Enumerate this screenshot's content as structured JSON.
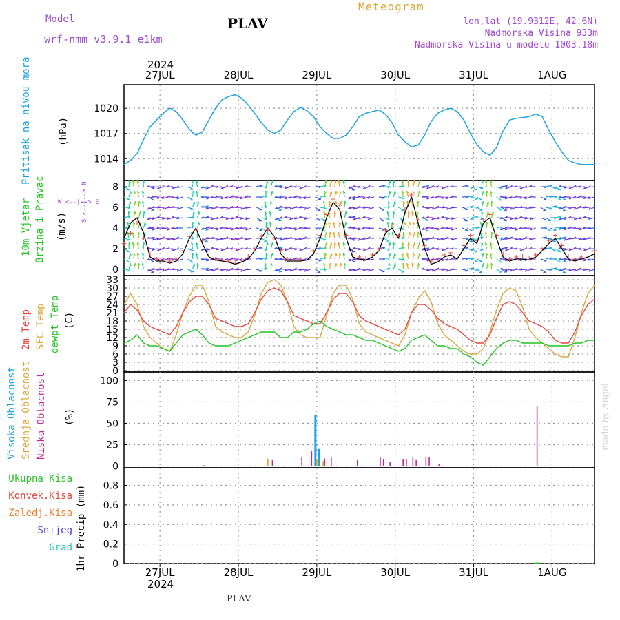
{
  "header": {
    "model_label": "Model",
    "model_name": "wrf-nmm_v3.9.1 e1km",
    "station": "PLAV",
    "product": "Meteogram",
    "lonlat": "lon,lat (19.9312E, 42.6N)",
    "elevation": "Nadmorska Visina 933m",
    "model_elevation": "Nadmorska Visina u modelu 1003.18m",
    "watermark": "made by Angel",
    "footer_station": "PLAV",
    "year": "2024"
  },
  "colors": {
    "pressure": "#1ca3e0",
    "wind_speed": "#000000",
    "temp": "#e8473f",
    "sfc_temp": "#d8a93a",
    "dewpoint": "#22c422",
    "high_cloud": "#1ca3e0",
    "mid_cloud": "#d8a93a",
    "low_cloud": "#c02a9a",
    "precip_total": "#22c422",
    "precip_conv": "#e8473f",
    "precip_frozen": "#f07d2a",
    "snow": "#4a3fd8",
    "graupel": "#2ac4b4",
    "title": "#000000",
    "meta": "#a04ad0"
  },
  "x_axis": {
    "hours_start": 0,
    "hours_end": 144,
    "day_ticks": [
      {
        "label": "27JUL",
        "hour": 11
      },
      {
        "label": "28JUL",
        "hour": 35
      },
      {
        "label": "29JUL",
        "hour": 59
      },
      {
        "label": "30JUL",
        "hour": 83
      },
      {
        "label": "31JUL",
        "hour": 107
      },
      {
        "label": "1AUG",
        "hour": 131
      }
    ]
  },
  "panels": {
    "pressure": {
      "ylabel_name": "Pritisak na nivou mora",
      "ylabel_unit": "(hPa)",
      "yticks": [
        1014,
        1017,
        1020
      ],
      "ylim": [
        1011.4,
        1022.8
      ]
    },
    "wind": {
      "ylabel_name": "10m Vjetar",
      "ylabel_sub": "Brzina i Pravac",
      "ylabel_unit": "(m/s)",
      "compass": "W <--|--> E",
      "compass_ns": "S <--|--> N",
      "yticks": [
        0,
        2,
        4,
        6,
        8
      ],
      "ylim": [
        -0.6,
        8.6
      ]
    },
    "temperature": {
      "ylabel_t2": "2m Temp",
      "ylabel_sfc": "SFC Temp",
      "ylabel_dew": "dewpt Temp",
      "ylabel_unit": "(C)",
      "yticks": [
        0,
        3,
        6,
        9,
        12,
        15,
        18,
        21,
        24,
        27,
        30,
        33
      ],
      "ylim": [
        -0.5,
        34.5
      ]
    },
    "cloud": {
      "ylabel_high": "Visoka Oblacnost",
      "ylabel_mid": "Srednja Oblacnost",
      "ylabel_low": "Niska Oblacnost",
      "ylabel_unit": "(%)",
      "yticks": [
        0,
        25,
        50,
        75,
        100
      ],
      "ylim": [
        -2,
        110
      ]
    },
    "precip": {
      "legend_total": "Ukupna Kisa",
      "legend_conv": "Konvek.Kisa",
      "legend_frozen": "Zaledj.Kisa",
      "legend_snow": "Snijeg",
      "legend_graupel": "Grad",
      "ylabel_unit": "1hr Precip (mm)",
      "yticks": [
        0,
        0.2,
        0.4,
        0.6,
        0.8
      ],
      "ylim": [
        0,
        0.98
      ]
    }
  },
  "chart_data": [
    {
      "type": "line",
      "title": "",
      "ylabel": "Pritisak na nivou mora (hPa)",
      "x": [
        0,
        2,
        4,
        6,
        8,
        10,
        12,
        14,
        16,
        18,
        20,
        22,
        24,
        26,
        28,
        30,
        32,
        34,
        36,
        38,
        40,
        42,
        44,
        46,
        48,
        50,
        52,
        54,
        56,
        58,
        60,
        62,
        64,
        66,
        68,
        70,
        72,
        74,
        76,
        78,
        80,
        82,
        84,
        86,
        88,
        90,
        92,
        94,
        96,
        98,
        100,
        102,
        104,
        106,
        108,
        110,
        112,
        114,
        116,
        118,
        120,
        122,
        124,
        126,
        128,
        130,
        132,
        134,
        136,
        138,
        140,
        142,
        144
      ],
      "series": [
        {
          "name": "pressure",
          "values": [
            1013.3,
            1013.8,
            1014.6,
            1016.3,
            1017.8,
            1018.6,
            1019.4,
            1020.0,
            1019.6,
            1018.6,
            1017.5,
            1016.8,
            1017.2,
            1018.6,
            1020.0,
            1021.0,
            1021.4,
            1021.6,
            1021.2,
            1020.4,
            1019.4,
            1018.3,
            1017.4,
            1017.0,
            1017.4,
            1018.6,
            1019.6,
            1020.1,
            1019.7,
            1019.0,
            1017.8,
            1017.0,
            1016.4,
            1016.4,
            1016.8,
            1017.8,
            1019.0,
            1019.4,
            1019.6,
            1019.8,
            1019.3,
            1018.3,
            1016.8,
            1016.0,
            1015.4,
            1015.6,
            1016.8,
            1018.4,
            1019.4,
            1019.8,
            1020.0,
            1019.6,
            1018.6,
            1017.0,
            1015.7,
            1014.8,
            1014.4,
            1015.3,
            1017.3,
            1018.6,
            1018.8,
            1018.9,
            1019.0,
            1019.3,
            1019.0,
            1017.4,
            1016.0,
            1014.8,
            1013.8,
            1013.5,
            1013.3,
            1013.3,
            1013.3
          ]
        }
      ]
    },
    {
      "type": "line",
      "title": "",
      "ylabel": "10m Vjetar Brzina i Pravac (m/s)",
      "x": [
        0,
        2,
        4,
        6,
        8,
        10,
        12,
        14,
        16,
        18,
        20,
        22,
        24,
        26,
        28,
        30,
        32,
        34,
        36,
        38,
        40,
        42,
        44,
        46,
        48,
        50,
        52,
        54,
        56,
        58,
        60,
        62,
        64,
        66,
        68,
        70,
        72,
        74,
        76,
        78,
        80,
        82,
        84,
        86,
        88,
        90,
        92,
        94,
        96,
        98,
        100,
        102,
        104,
        106,
        108,
        110,
        112,
        114,
        116,
        118,
        120,
        122,
        124,
        126,
        128,
        130,
        132,
        134,
        136,
        138,
        140,
        142,
        144
      ],
      "series": [
        {
          "name": "wind_speed",
          "values": [
            3.0,
            4.5,
            5.0,
            3.5,
            1.2,
            0.8,
            0.8,
            0.6,
            0.8,
            1.5,
            3.0,
            4.0,
            2.5,
            1.2,
            0.9,
            0.8,
            0.7,
            0.5,
            0.7,
            1.0,
            1.8,
            3.0,
            4.0,
            3.2,
            1.5,
            0.8,
            0.8,
            0.8,
            0.9,
            1.5,
            3.0,
            5.0,
            6.5,
            5.8,
            3.0,
            1.2,
            1.0,
            0.9,
            1.2,
            1.8,
            3.5,
            4.0,
            3.0,
            5.5,
            7.0,
            4.5,
            2.0,
            0.5,
            0.7,
            1.2,
            1.4,
            1.0,
            2.0,
            3.0,
            2.5,
            4.5,
            5.0,
            3.0,
            1.2,
            0.8,
            1.0,
            1.0,
            0.9,
            1.2,
            1.8,
            2.5,
            3.0,
            2.0,
            1.0,
            0.8,
            1.0,
            1.2,
            1.5
          ]
        },
        {
          "name": "wind_gust",
          "values": [
            2.5,
            3.5,
            4.5,
            3.0,
            1.5,
            1.0,
            0.9,
            0.8,
            1.0,
            1.8,
            3.2,
            3.8,
            2.8,
            1.5,
            1.0,
            0.9,
            0.8,
            0.7,
            0.9,
            1.3,
            2.0,
            3.2,
            3.8,
            3.0,
            1.8,
            1.0,
            0.9,
            1.0,
            1.1,
            1.8,
            3.3,
            5.3,
            6.8,
            6.2,
            3.3,
            1.5,
            1.2,
            1.1,
            1.4,
            2.0,
            3.8,
            4.3,
            3.3,
            5.8,
            7.2,
            4.8,
            2.3,
            0.8,
            0.9,
            1.4,
            1.6,
            1.3,
            2.3,
            3.3,
            2.8,
            4.8,
            5.3,
            3.3,
            1.5,
            1.0,
            1.2,
            1.3,
            1.1,
            1.4,
            2.0,
            2.8,
            3.3,
            2.3,
            1.3,
            1.0,
            1.2,
            1.5,
            1.8
          ]
        }
      ]
    },
    {
      "type": "line",
      "title": "",
      "ylabel": "2m Temp / SFC Temp / dewpt Temp (C)",
      "x": [
        0,
        2,
        4,
        6,
        8,
        10,
        12,
        14,
        16,
        18,
        20,
        22,
        24,
        26,
        28,
        30,
        32,
        34,
        36,
        38,
        40,
        42,
        44,
        46,
        48,
        50,
        52,
        54,
        56,
        58,
        60,
        62,
        64,
        66,
        68,
        70,
        72,
        74,
        76,
        78,
        80,
        82,
        84,
        86,
        88,
        90,
        92,
        94,
        96,
        98,
        100,
        102,
        104,
        106,
        108,
        110,
        112,
        114,
        116,
        118,
        120,
        122,
        124,
        126,
        128,
        130,
        132,
        134,
        136,
        138,
        140,
        142,
        144
      ],
      "series": [
        {
          "name": "2m Temp",
          "values": [
            21,
            24,
            22,
            18,
            16,
            15,
            14,
            13,
            16,
            21,
            25,
            27,
            27,
            24,
            19,
            18,
            17,
            16,
            16,
            17,
            21,
            26,
            29,
            30,
            29,
            25,
            20,
            19,
            18,
            17,
            17,
            21,
            26,
            28,
            28,
            25,
            20,
            18,
            17,
            16,
            15,
            14,
            13,
            15,
            21,
            24,
            24,
            22,
            19,
            17,
            16,
            15,
            13,
            11,
            10,
            10,
            13,
            19,
            24,
            25,
            24,
            21,
            18,
            17,
            16,
            14,
            11,
            10,
            10,
            14,
            20,
            24,
            26
          ]
        },
        {
          "name": "SFC Temp",
          "values": [
            24,
            28,
            24,
            16,
            12,
            10,
            8,
            7,
            13,
            21,
            27,
            31,
            31,
            25,
            16,
            14,
            13,
            12,
            12,
            14,
            20,
            28,
            32,
            33,
            31,
            25,
            16,
            13,
            12,
            12,
            12,
            20,
            28,
            31,
            31,
            26,
            17,
            14,
            13,
            12,
            11,
            10,
            9,
            13,
            21,
            26,
            29,
            25,
            17,
            13,
            11,
            9,
            7,
            6,
            6,
            8,
            14,
            22,
            28,
            30,
            29,
            23,
            15,
            12,
            10,
            8,
            6,
            5,
            5,
            12,
            21,
            28,
            31
          ]
        },
        {
          "name": "dewpt Temp",
          "values": [
            10,
            11,
            13,
            10,
            9,
            9,
            8,
            7,
            10,
            13,
            14,
            15,
            13,
            10,
            9,
            9,
            9,
            10,
            11,
            12,
            13,
            14,
            14,
            14,
            12,
            12,
            14,
            14,
            15,
            17,
            18,
            16,
            15,
            14,
            13,
            13,
            12,
            11,
            11,
            10,
            9,
            8,
            7,
            8,
            11,
            12,
            13,
            11,
            9,
            9,
            8,
            8,
            6,
            5,
            3,
            2,
            5,
            8,
            10,
            11,
            11,
            10,
            10,
            10,
            10,
            9,
            9,
            9,
            9,
            10,
            10,
            11,
            11
          ]
        }
      ]
    },
    {
      "type": "bar",
      "title": "",
      "ylabel": "Oblacnost (%)",
      "series": [
        {
          "name": "Visoka Oblacnost",
          "x": [
            59,
            60
          ],
          "values": [
            60,
            20
          ]
        },
        {
          "name": "Srednja Oblacnost",
          "x": [
            44,
            59,
            61
          ],
          "values": [
            8,
            8,
            6
          ]
        },
        {
          "name": "Niska Oblacnost",
          "x": [
            24,
            45,
            54,
            57,
            61,
            63,
            71,
            78,
            79,
            81,
            85,
            86,
            88,
            89,
            92,
            93,
            96,
            126
          ],
          "values": [
            1,
            7,
            10,
            18,
            9,
            10,
            7,
            10,
            8,
            5,
            8,
            8,
            10,
            7,
            10,
            10,
            2,
            70
          ]
        }
      ]
    },
    {
      "type": "bar",
      "title": "",
      "ylabel": "1hr Precip (mm)",
      "series": [
        {
          "name": "Ukupna Kisa",
          "x": [
            126,
            127
          ],
          "values": [
            0.01,
            0.01
          ]
        }
      ]
    }
  ]
}
